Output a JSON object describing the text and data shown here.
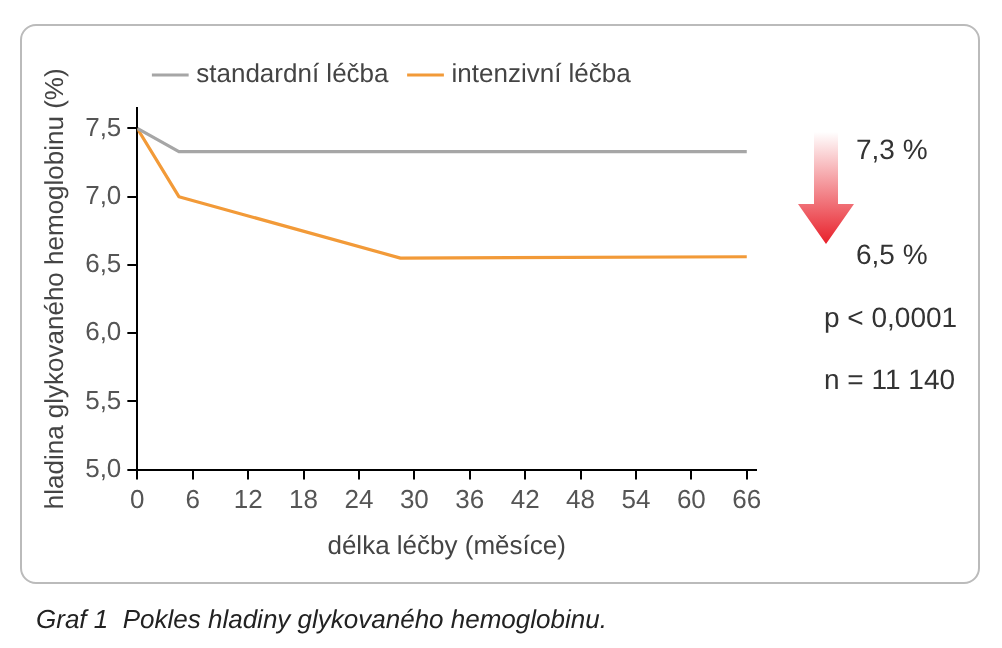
{
  "chart_data": {
    "type": "line",
    "title": "Graf 1  Pokles hladiny glykovaného hemoglobinu.",
    "xlabel": "délka léčby (měsíce)",
    "ylabel": "hladina glykovaného hemoglobinu (%)",
    "series": [
      {
        "name": "standardní léčba",
        "color": "#a6a6a6",
        "x": [
          0,
          4.5,
          66
        ],
        "values": [
          7.5,
          7.33,
          7.33
        ]
      },
      {
        "name": "intenzivní léčba",
        "color": "#f29a38",
        "x": [
          0,
          4.5,
          28.5,
          66
        ],
        "values": [
          7.5,
          7.0,
          6.55,
          6.56
        ]
      }
    ],
    "xlim": [
      0,
      67
    ],
    "xticks": [
      0,
      6,
      12,
      18,
      24,
      30,
      36,
      42,
      48,
      54,
      60,
      66
    ],
    "ylim": [
      5,
      7.65
    ],
    "yticks": [
      {
        "value": 5,
        "label": "5,0"
      },
      {
        "value": 5.5,
        "label": "5,5"
      },
      {
        "value": 6,
        "label": "6,0"
      },
      {
        "value": 6.5,
        "label": "6,5"
      },
      {
        "value": 7,
        "label": "7,0"
      },
      {
        "value": 7.5,
        "label": "7,5"
      }
    ],
    "annotations": [
      "7,3 %",
      "6,5 %",
      "p < 0,0001",
      "n = 11 140"
    ],
    "grid": false,
    "legend": "top",
    "marker": "none",
    "line_style": "solid"
  }
}
